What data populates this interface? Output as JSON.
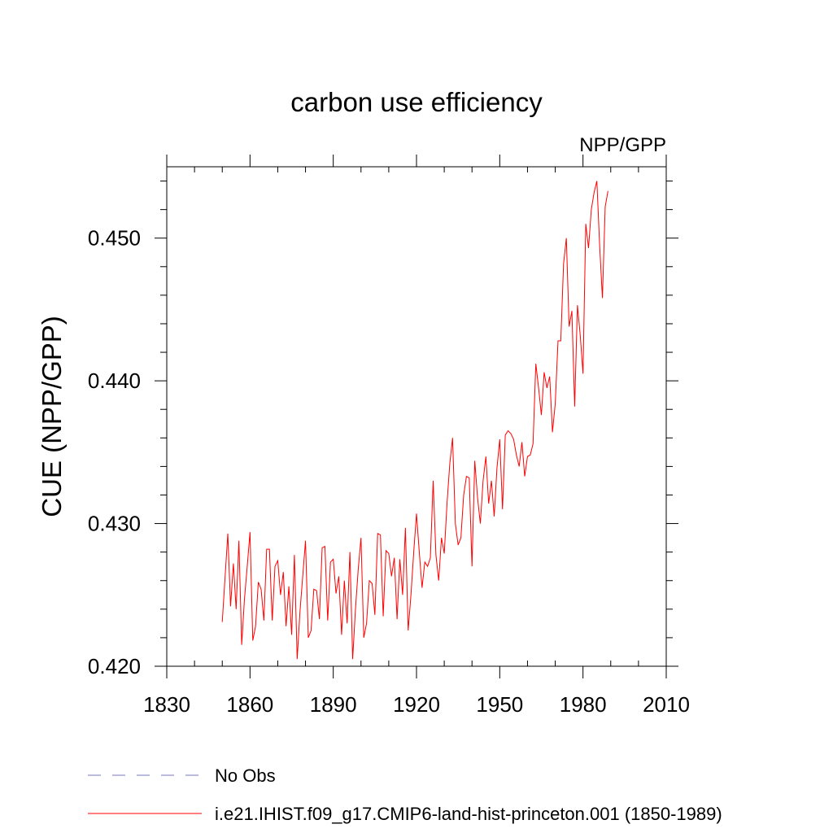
{
  "chart_data": {
    "type": "line",
    "title": "carbon use efficiency",
    "subtitle": "NPP/GPP",
    "xlabel": "",
    "ylabel": "CUE  (NPP/GPP)",
    "xlim": [
      1830,
      2010
    ],
    "ylim": [
      0.42,
      0.455
    ],
    "x_ticks": [
      1830,
      1860,
      1890,
      1920,
      1950,
      1980,
      2010
    ],
    "x_tick_labels": [
      "1830",
      "1860",
      "1890",
      "1920",
      "1950",
      "1980",
      "2010"
    ],
    "y_ticks": [
      0.42,
      0.43,
      0.44,
      0.45
    ],
    "y_tick_labels": [
      "0.420",
      "0.430",
      "0.440",
      "0.450"
    ],
    "grid": false,
    "legend_position": "bottom",
    "series": [
      {
        "name": "No Obs",
        "color": "#7777bb",
        "line_style": "dashed",
        "x": [],
        "y": []
      },
      {
        "name": "i.e21.IHIST.f09_g17.CMIP6-land-hist-princeton.001 (1850-1989)",
        "color": "#ff0000",
        "line_style": "solid",
        "x_start": 1850,
        "x_step": 1,
        "y": [
          0.4231,
          0.4262,
          0.4293,
          0.4242,
          0.4272,
          0.424,
          0.4288,
          0.4215,
          0.4247,
          0.427,
          0.4294,
          0.4218,
          0.4228,
          0.4259,
          0.4254,
          0.4232,
          0.4282,
          0.4282,
          0.4232,
          0.427,
          0.4274,
          0.425,
          0.4266,
          0.4228,
          0.4256,
          0.4222,
          0.4278,
          0.4205,
          0.4238,
          0.4263,
          0.4288,
          0.422,
          0.4225,
          0.4254,
          0.4253,
          0.4233,
          0.4283,
          0.4284,
          0.4232,
          0.4273,
          0.4275,
          0.4251,
          0.4263,
          0.4222,
          0.426,
          0.423,
          0.428,
          0.4205,
          0.424,
          0.4268,
          0.429,
          0.422,
          0.423,
          0.426,
          0.4258,
          0.4236,
          0.4293,
          0.4292,
          0.4235,
          0.4281,
          0.4279,
          0.4263,
          0.4276,
          0.4233,
          0.4275,
          0.425,
          0.4297,
          0.4225,
          0.425,
          0.428,
          0.4307,
          0.428,
          0.4255,
          0.4273,
          0.427,
          0.4276,
          0.433,
          0.4278,
          0.426,
          0.429,
          0.4279,
          0.4314,
          0.4342,
          0.436,
          0.43,
          0.4285,
          0.429,
          0.432,
          0.4333,
          0.4332,
          0.427,
          0.4344,
          0.4318,
          0.43,
          0.433,
          0.4347,
          0.4314,
          0.433,
          0.4305,
          0.4339,
          0.4359,
          0.431,
          0.4362,
          0.4365,
          0.4363,
          0.4359,
          0.4348,
          0.434,
          0.4357,
          0.4333,
          0.4347,
          0.4348,
          0.4356,
          0.4412,
          0.4395,
          0.4376,
          0.4406,
          0.4395,
          0.4403,
          0.4364,
          0.4384,
          0.4428,
          0.4428,
          0.4482,
          0.45,
          0.4438,
          0.4449,
          0.4382,
          0.4453,
          0.4432,
          0.4405,
          0.451,
          0.4493,
          0.452,
          0.4532,
          0.454,
          0.4495,
          0.4458,
          0.4522,
          0.4533
        ]
      }
    ]
  }
}
